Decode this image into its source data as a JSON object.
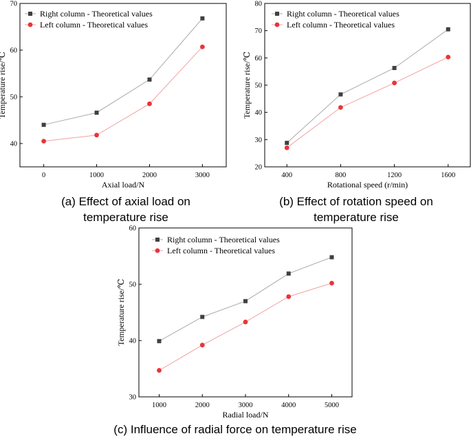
{
  "colors": {
    "right_series": "#404040",
    "left_series": "#e8353b",
    "right_line": "#a9a9a9",
    "left_line": "#f2a0a0",
    "axis": "#000000"
  },
  "chart_data": [
    {
      "type": "line",
      "caption": [
        "(a) Effect of axial load on",
        "temperature rise"
      ],
      "xlabel": "Axial load/N",
      "ylabel": "Temperature rise/℃",
      "categories": [
        "0",
        "1000",
        "2000",
        "3000"
      ],
      "x": [
        0,
        1000,
        2000,
        3000
      ],
      "xlim": [
        -450,
        3450
      ],
      "ylim": [
        35,
        70
      ],
      "yticks": [
        40,
        50,
        60,
        70
      ],
      "legend": "top-left",
      "series": [
        {
          "name": "Right column - Theoretical values",
          "values": [
            44.0,
            46.6,
            53.7,
            66.8
          ],
          "marker": "square"
        },
        {
          "name": "Left column - Theoretical values",
          "values": [
            40.5,
            41.8,
            48.5,
            60.7
          ],
          "marker": "circle"
        }
      ]
    },
    {
      "type": "line",
      "caption": [
        "(b) Effect of rotation speed on",
        "temperature rise"
      ],
      "xlabel": "Rotational speed (r/min)",
      "ylabel": "Temperature rise/℃",
      "categories": [
        "400",
        "800",
        "1200",
        "1600"
      ],
      "x": [
        400,
        800,
        1200,
        1600
      ],
      "xlim": [
        235,
        1765
      ],
      "ylim": [
        20,
        80
      ],
      "yticks": [
        20,
        30,
        40,
        50,
        60,
        70,
        80
      ],
      "legend": "top-left",
      "series": [
        {
          "name": "Right column - Theoretical values",
          "values": [
            28.8,
            46.6,
            56.3,
            70.5
          ],
          "marker": "square"
        },
        {
          "name": "Left column - Theoretical values",
          "values": [
            27.0,
            41.8,
            50.8,
            60.3
          ],
          "marker": "circle"
        }
      ]
    },
    {
      "type": "line",
      "caption": [
        "(c)  Influence of radial force on temperature rise"
      ],
      "xlabel": "Radial load/N",
      "ylabel": "Temperature rise/℃",
      "categories": [
        "1000",
        "2000",
        "3000",
        "4000",
        "5000"
      ],
      "x": [
        1000,
        2000,
        3000,
        4000,
        5000
      ],
      "xlim": [
        530,
        5470
      ],
      "ylim": [
        30,
        60
      ],
      "yticks": [
        30,
        40,
        50,
        60
      ],
      "legend": "top-left",
      "series": [
        {
          "name": "Right column - Theoretical values",
          "values": [
            39.9,
            44.2,
            47.0,
            51.9,
            54.8
          ],
          "marker": "square"
        },
        {
          "name": "Left column - Theoretical values",
          "values": [
            34.7,
            39.2,
            43.3,
            47.8,
            50.2
          ],
          "marker": "circle"
        }
      ]
    }
  ]
}
